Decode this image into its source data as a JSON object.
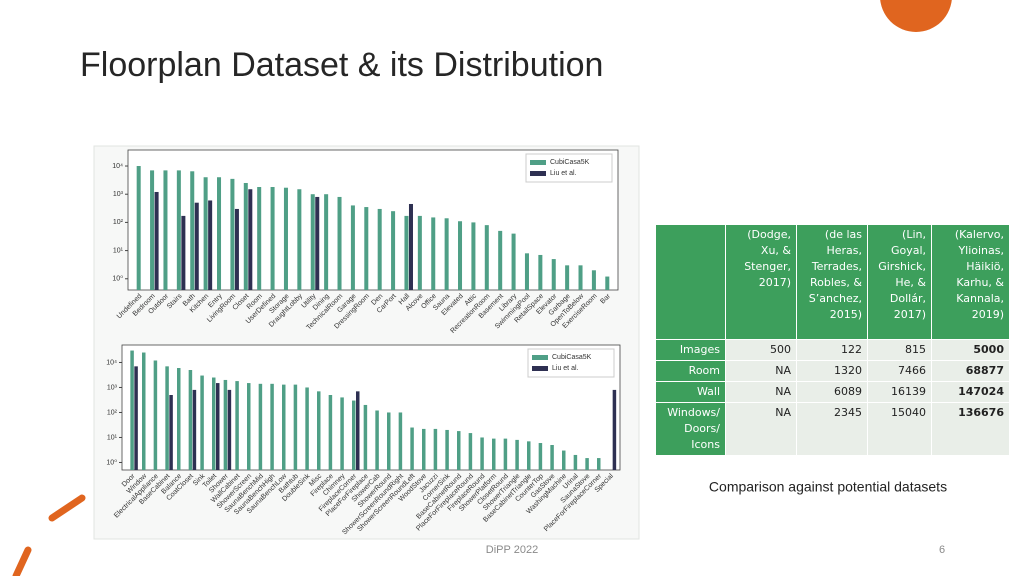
{
  "title": "Floorplan Dataset & its Distribution",
  "chart_data": [
    {
      "type": "bar",
      "log_scale": true,
      "grid": false,
      "legend": "upper right",
      "categories": [
        "Undefined",
        "Bedroom",
        "Outdoor",
        "Stairs",
        "Bath",
        "Kitchen",
        "Entry",
        "LivingRoom",
        "Closet",
        "Room",
        "UserDefined",
        "Storage",
        "DraughtLobby",
        "Utility",
        "Dining",
        "TechnicalRoom",
        "Garage",
        "DressingRoom",
        "Den",
        "CarPort",
        "Hall",
        "Alcove",
        "Office",
        "Sauna",
        "Elevated",
        "Attic",
        "RecreationRoom",
        "Basement",
        "Library",
        "SwimmingPool",
        "RetailSpace",
        "Elevator",
        "Garbage",
        "OpenToBelow",
        "ExerciseRoom",
        "Bar"
      ],
      "series": [
        {
          "name": "CubiCasa5K",
          "color": "#4f9f86",
          "values": [
            10000,
            7000,
            7000,
            7000,
            6500,
            4000,
            4000,
            3500,
            2500,
            1800,
            1800,
            1700,
            1500,
            1000,
            1000,
            800,
            400,
            350,
            300,
            250,
            170,
            170,
            150,
            140,
            110,
            100,
            80,
            50,
            40,
            8,
            7,
            5,
            3,
            3,
            2,
            1.2
          ]
        },
        {
          "name": "Liu et al.",
          "color": "#2e3052",
          "values": [
            null,
            1200,
            null,
            170,
            500,
            600,
            null,
            300,
            1500,
            null,
            null,
            null,
            null,
            800,
            null,
            null,
            null,
            null,
            null,
            null,
            450,
            null,
            null,
            null,
            null,
            null,
            null,
            null,
            null,
            null,
            null,
            null,
            null,
            null,
            null,
            null
          ]
        }
      ],
      "ylim": [
        0.4,
        37000
      ],
      "yticks": [
        {
          "value": 1,
          "label": "10⁰"
        },
        {
          "value": 10,
          "label": "10¹"
        },
        {
          "value": 100,
          "label": "10²"
        },
        {
          "value": 1000,
          "label": "10³"
        },
        {
          "value": 10000,
          "label": "10⁴"
        }
      ]
    },
    {
      "type": "bar",
      "log_scale": true,
      "grid": false,
      "legend": "upper right",
      "categories": [
        "Door",
        "Window",
        "ElectricalAppliance",
        "BaseCabinet",
        "Balance",
        "CoatCloset",
        "Sink",
        "Toilet",
        "Shower",
        "WallCabinet",
        "ShowerScreen",
        "SaunaBenchMid",
        "SaunaBenchHigh",
        "SaunaBenchLow",
        "Bathtub",
        "DoubleSink",
        "Misc",
        "Fireplace",
        "Chimney",
        "FireplaceCorner",
        "PlaceForFireplace",
        "ShowerCab",
        "ShowerRound",
        "ShowerScreenRoundRight",
        "ShowerScreenRoundLeft",
        "WoodStove",
        "Jacuzzi",
        "CornerSink",
        "BaseCabinetRound",
        "PlaceForFireplaceRound",
        "FireplaceRound",
        "ShowerPlatform",
        "ClosetRound",
        "ShowerTriangle",
        "BaseCabinetTriangle",
        "CounterTop",
        "GasStove",
        "WashingMachine",
        "Urinal",
        "SaunaStove",
        "PlaceForFireplaceCorner",
        "Special"
      ],
      "series": [
        {
          "name": "CubiCasa5K",
          "color": "#4f9f86",
          "values": [
            30000,
            25000,
            12000,
            7000,
            6000,
            5000,
            3000,
            2500,
            2000,
            1800,
            1500,
            1400,
            1400,
            1300,
            1300,
            1000,
            700,
            500,
            400,
            300,
            200,
            120,
            100,
            100,
            25,
            22,
            22,
            20,
            18,
            15,
            10,
            9,
            9,
            8,
            7,
            6,
            5,
            3,
            2,
            1.5,
            1.5,
            null
          ]
        },
        {
          "name": "Liu et al.",
          "color": "#2e3052",
          "values": [
            7000,
            null,
            null,
            500,
            null,
            800,
            null,
            1500,
            800,
            null,
            null,
            null,
            null,
            null,
            null,
            null,
            null,
            null,
            null,
            700,
            null,
            null,
            null,
            null,
            null,
            null,
            null,
            null,
            null,
            null,
            null,
            null,
            null,
            null,
            null,
            null,
            null,
            null,
            null,
            null,
            null,
            800
          ]
        }
      ],
      "ylim": [
        0.5,
        50000
      ],
      "yticks": [
        {
          "value": 1,
          "label": "10⁰"
        },
        {
          "value": 10,
          "label": "10¹"
        },
        {
          "value": 100,
          "label": "10²"
        },
        {
          "value": 1000,
          "label": "10³"
        },
        {
          "value": 10000,
          "label": "10⁴"
        }
      ]
    }
  ],
  "table": {
    "header": [
      "(Dodge, Xu, & Stenger, 2017)",
      "(de las Heras, Terrades, Robles, & S’anchez, 2015)",
      "(Lin, Goyal, Girshick, He, & Dollár, 2017)",
      "(Kalervo, Ylioinas, Häikiö, Karhu, & Kannala, 2019)"
    ],
    "rows": [
      {
        "label": "Images",
        "cells": [
          "500",
          "122",
          "815",
          "5000"
        ]
      },
      {
        "label": "Room",
        "cells": [
          "NA",
          "1320",
          "7466",
          "68877"
        ]
      },
      {
        "label": "Wall",
        "cells": [
          "NA",
          "6089",
          "16139",
          "147024"
        ]
      },
      {
        "label": "Windows/ Doors/ Icons",
        "cells": [
          "NA",
          "2345",
          "15040",
          "136676"
        ]
      }
    ]
  },
  "caption": "Comparison against potential datasets",
  "footer": "DiPP 2022",
  "page_number": "6"
}
